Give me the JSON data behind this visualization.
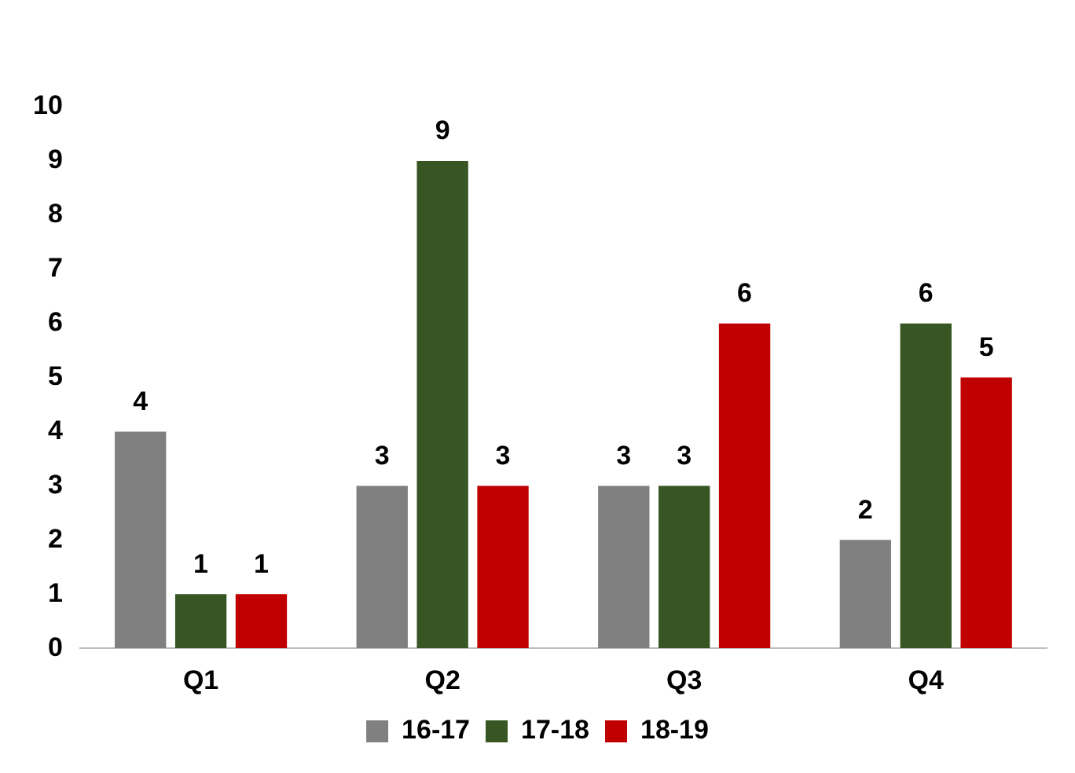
{
  "chart_data": {
    "type": "bar",
    "categories": [
      "Q1",
      "Q2",
      "Q3",
      "Q4"
    ],
    "series": [
      {
        "name": "16-17",
        "color": "#808080",
        "values": [
          4,
          3,
          3,
          2
        ]
      },
      {
        "name": "17-18",
        "color": "#375623",
        "values": [
          1,
          9,
          3,
          6
        ]
      },
      {
        "name": "18-19",
        "color": "#c00000",
        "values": [
          1,
          3,
          6,
          5
        ]
      }
    ],
    "ylim": [
      0,
      10
    ],
    "yticks": [
      0,
      1,
      2,
      3,
      4,
      5,
      6,
      7,
      8,
      9,
      10
    ],
    "grid": false,
    "legend": "bottom",
    "data_labels": true
  }
}
